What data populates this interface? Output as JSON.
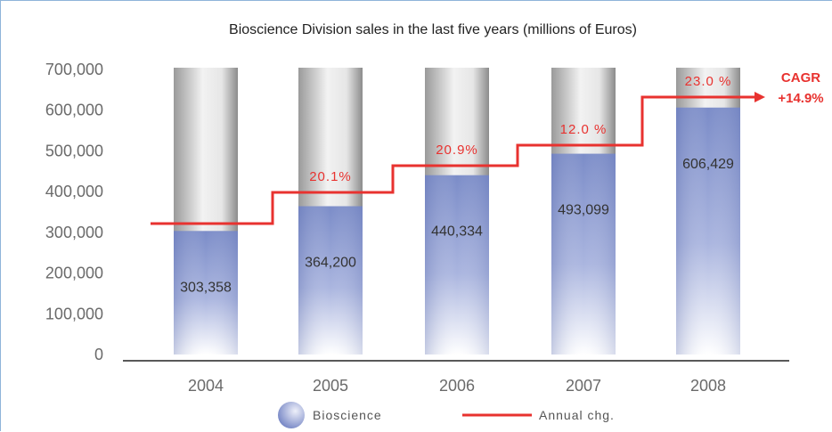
{
  "chart_data": {
    "type": "bar",
    "title": "Bioscience Division sales in the last five years (millions of Euros)",
    "categories": [
      "2004",
      "2005",
      "2006",
      "2007",
      "2008"
    ],
    "series": [
      {
        "name": "Bioscience",
        "values": [
          303358,
          364200,
          440334,
          493099,
          606429
        ]
      },
      {
        "name": "Annual chg.",
        "type": "step-line",
        "values": [
          null,
          20.1,
          20.9,
          12.0,
          23.0
        ],
        "labels": [
          "",
          "20.1%",
          "20.9%",
          "12.0 %",
          "23.0 %"
        ]
      }
    ],
    "value_labels": [
      "303,358",
      "364,200",
      "440,334",
      "493,099",
      "606,429"
    ],
    "yticks": [
      "0",
      "100,000",
      "200,000",
      "300,000",
      "400,000",
      "500,000",
      "600,000",
      "700,000"
    ],
    "ylim": [
      0,
      700000
    ],
    "xlabel": "",
    "ylabel": "",
    "cagr": {
      "label": "CAGR",
      "value": "+14.9%"
    },
    "legend": {
      "position": "bottom",
      "items": [
        "Bioscience",
        "Annual chg."
      ]
    },
    "colors": {
      "bar": "#7e8fca",
      "background_bar": "#d9d9d9",
      "line": "#e8322f"
    }
  }
}
